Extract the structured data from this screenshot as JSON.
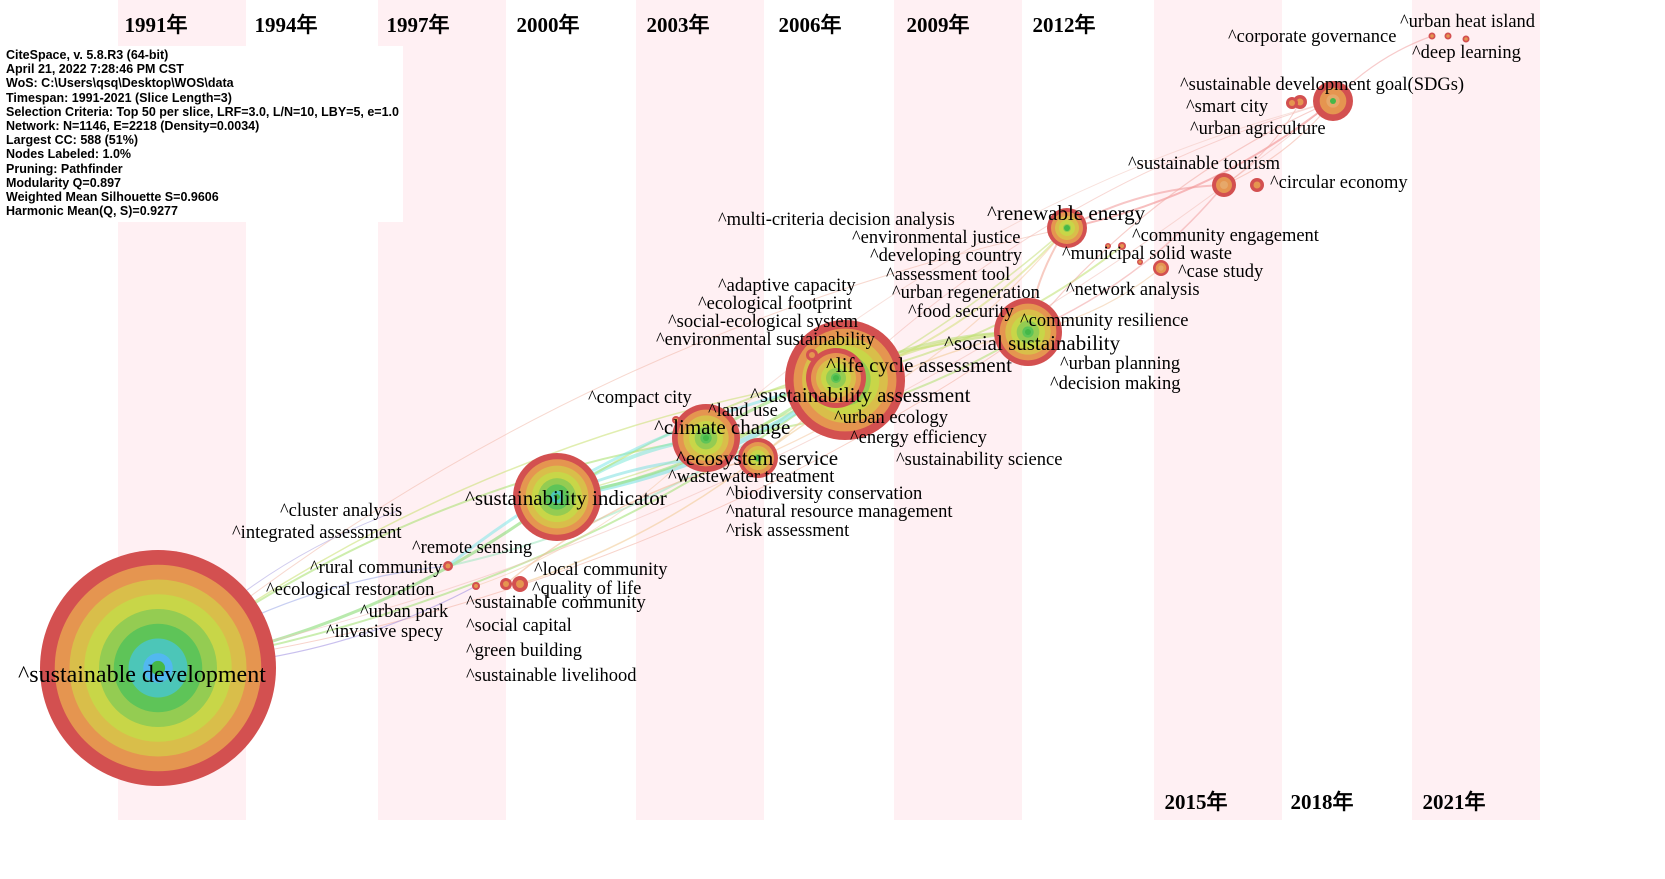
{
  "info_panel": {
    "lines": [
      "CiteSpace, v. 5.8.R3 (64-bit)",
      "April 21, 2022 7:28:46 PM CST",
      "WoS: C:\\Users\\qsq\\Desktop\\WOS\\data",
      "Timespan: 1991-2021 (Slice Length=3)",
      "Selection Criteria: Top 50 per slice, LRF=3.0, L/N=10, LBY=5, e=1.0",
      "Network: N=1146, E=2218 (Density=0.0034)",
      "Largest CC: 588 (51%)",
      "Nodes Labeled: 1.0%",
      "Pruning: Pathfinder",
      "Modularity Q=0.897",
      "Weighted Mean Silhouette S=0.9606",
      "Harmonic Mean(Q, S)=0.9277"
    ]
  },
  "years_top": [
    "1991年",
    "1994年",
    "1997年",
    "2000年",
    "2003年",
    "2006年",
    "2009年",
    "2012年"
  ],
  "years_bottom": [
    "2015年",
    "2018年",
    "2021年"
  ],
  "band_color": "#fff0f3",
  "ring_colors": [
    "#d35050",
    "#e59550",
    "#d9be4a",
    "#c8d648",
    "#94cc52",
    "#5ec458",
    "#4cc6b8",
    "#52b8f0"
  ],
  "nodes": [
    {
      "id": "sustainable_development",
      "label": "^sustainable development",
      "year": 1991,
      "size": 10,
      "font": "xl"
    },
    {
      "id": "sustainability_indicator",
      "label": "^sustainability indicator",
      "year": 2000,
      "size": 6,
      "font": "lg"
    },
    {
      "id": "sustainability_assessment",
      "label": "^sustainability assessment",
      "year": 2005,
      "size": 9,
      "font": "lg"
    },
    {
      "id": "life_cycle_assessment",
      "label": "^life cycle assessment",
      "year": 2005,
      "size": 8,
      "font": "lg"
    },
    {
      "id": "climate_change",
      "label": "^climate change",
      "year": 2003,
      "size": 5,
      "font": "lg"
    },
    {
      "id": "ecosystem_service",
      "label": "^ecosystem service",
      "year": 2004,
      "size": 4,
      "font": "lg"
    },
    {
      "id": "social_sustainability",
      "label": "^social sustainability",
      "year": 2011,
      "size": 5,
      "font": "lg"
    },
    {
      "id": "renewable_energy",
      "label": "^renewable energy",
      "year": 2012,
      "size": 4,
      "font": "lg"
    },
    {
      "id": "sdgs",
      "label": "^sustainable development goal(SDGs)",
      "year": 2018,
      "size": 3,
      "font": "md"
    },
    {
      "id": "corporate_governance",
      "label": "^corporate governance",
      "year": 2020,
      "size": 1,
      "font": "md"
    },
    {
      "id": "urban_heat_island",
      "label": "^urban heat island",
      "year": 2021,
      "size": 1,
      "font": "md"
    },
    {
      "id": "deep_learning",
      "label": "^deep learning",
      "year": 2021,
      "size": 1,
      "font": "md"
    },
    {
      "id": "smart_city",
      "label": "^smart city",
      "year": 2018,
      "size": 1,
      "font": "md"
    },
    {
      "id": "urban_agriculture",
      "label": "^urban agriculture",
      "year": 2017,
      "size": 1,
      "font": "md"
    },
    {
      "id": "sustainable_tourism",
      "label": "^sustainable tourism",
      "year": 2015,
      "size": 2,
      "font": "md"
    },
    {
      "id": "circular_economy",
      "label": "^circular economy",
      "year": 2016,
      "size": 1,
      "font": "md"
    },
    {
      "id": "mcda",
      "label": "^multi-criteria decision analysis",
      "year": 2010,
      "size": 1,
      "font": "md"
    },
    {
      "id": "environmental_justice",
      "label": "^environmental justice",
      "year": 2010,
      "size": 1,
      "font": "md"
    },
    {
      "id": "community_engagement",
      "label": "^community engagement",
      "year": 2013,
      "size": 1,
      "font": "md"
    },
    {
      "id": "developing_country",
      "label": "^developing country",
      "year": 2009,
      "size": 1,
      "font": "md"
    },
    {
      "id": "municipal_solid_waste",
      "label": "^municipal solid waste",
      "year": 2013,
      "size": 1,
      "font": "md"
    },
    {
      "id": "assessment_tool",
      "label": "^assessment tool",
      "year": 2009,
      "size": 1,
      "font": "md"
    },
    {
      "id": "case_study",
      "label": "^case study",
      "year": 2014,
      "size": 1,
      "font": "md"
    },
    {
      "id": "adaptive_capacity",
      "label": "^adaptive capacity",
      "year": 2005,
      "size": 1,
      "font": "md"
    },
    {
      "id": "urban_regeneration",
      "label": "^urban regeneration",
      "year": 2009,
      "size": 1,
      "font": "md"
    },
    {
      "id": "network_analysis",
      "label": "^network analysis",
      "year": 2013,
      "size": 1,
      "font": "md"
    },
    {
      "id": "ecological_footprint",
      "label": "^ecological footprint",
      "year": 2005,
      "size": 1,
      "font": "md"
    },
    {
      "id": "food_security",
      "label": "^food security",
      "year": 2010,
      "size": 1,
      "font": "md"
    },
    {
      "id": "social_ecological_system",
      "label": "^social-ecological system",
      "year": 2005,
      "size": 1,
      "font": "md"
    },
    {
      "id": "community_resilience",
      "label": "^community resilience",
      "year": 2011,
      "size": 1,
      "font": "md"
    },
    {
      "id": "environmental_sustainability",
      "label": "^environmental sustainability",
      "year": 2005,
      "size": 1,
      "font": "md"
    },
    {
      "id": "urban_planning",
      "label": "^urban planning",
      "year": 2012,
      "size": 1,
      "font": "md"
    },
    {
      "id": "decision_making",
      "label": "^decision making",
      "year": 2012,
      "size": 1,
      "font": "md"
    },
    {
      "id": "compact_city",
      "label": "^compact city",
      "year": 2002,
      "size": 1,
      "font": "md"
    },
    {
      "id": "land_use",
      "label": "^land use",
      "year": 2004,
      "size": 1,
      "font": "md"
    },
    {
      "id": "urban_ecology",
      "label": "^urban ecology",
      "year": 2006,
      "size": 1,
      "font": "md"
    },
    {
      "id": "energy_efficiency",
      "label": "^energy efficiency",
      "year": 2006,
      "size": 1,
      "font": "md"
    },
    {
      "id": "sustainability_science",
      "label": "^sustainability science",
      "year": 2008,
      "size": 1,
      "font": "md"
    },
    {
      "id": "wastewater_treatment",
      "label": "^wastewater treatment",
      "year": 2004,
      "size": 1,
      "font": "md"
    },
    {
      "id": "biodiversity_conservation",
      "label": "^biodiversity conservation",
      "year": 2004,
      "size": 1,
      "font": "md"
    },
    {
      "id": "natural_resource_management",
      "label": "^natural resource management",
      "year": 2004,
      "size": 1,
      "font": "md"
    },
    {
      "id": "risk_assessment",
      "label": "^risk assessment",
      "year": 2004,
      "size": 1,
      "font": "md"
    },
    {
      "id": "cluster_analysis",
      "label": "^cluster analysis",
      "year": 1998,
      "size": 1,
      "font": "md"
    },
    {
      "id": "integrated_assessment",
      "label": "^integrated assessment",
      "year": 1998,
      "size": 1,
      "font": "md"
    },
    {
      "id": "remote_sensing",
      "label": "^remote sensing",
      "year": 1999,
      "size": 1,
      "font": "md"
    },
    {
      "id": "rural_community",
      "label": "^rural community",
      "year": 1997,
      "size": 1,
      "font": "md"
    },
    {
      "id": "local_community",
      "label": "^local community",
      "year": 1999,
      "size": 1,
      "font": "md"
    },
    {
      "id": "ecological_restoration",
      "label": "^ecological restoration",
      "year": 1997,
      "size": 1,
      "font": "md"
    },
    {
      "id": "quality_of_life",
      "label": "^quality of life",
      "year": 1999,
      "size": 1,
      "font": "md"
    },
    {
      "id": "sustainable_community",
      "label": "^sustainable community",
      "year": 1998,
      "size": 1,
      "font": "md"
    },
    {
      "id": "urban_park",
      "label": "^urban park",
      "year": 1997,
      "size": 1,
      "font": "md"
    },
    {
      "id": "invasive_specy",
      "label": "^invasive specy",
      "year": 1997,
      "size": 1,
      "font": "md"
    },
    {
      "id": "social_capital",
      "label": "^social capital",
      "year": 1998,
      "size": 1,
      "font": "md"
    },
    {
      "id": "green_building",
      "label": "^green building",
      "year": 1998,
      "size": 1,
      "font": "md"
    },
    {
      "id": "sustainable_livelihood",
      "label": "^sustainable livelihood",
      "year": 1998,
      "size": 1,
      "font": "md"
    }
  ]
}
